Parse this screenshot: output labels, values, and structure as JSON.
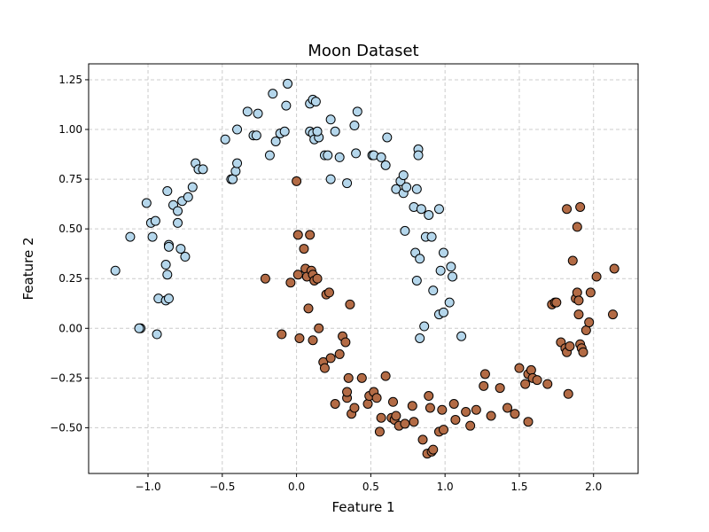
{
  "chart_data": {
    "type": "scatter",
    "title": "Moon Dataset",
    "xlabel": "Feature 1",
    "ylabel": "Feature 2",
    "xlim": [
      -1.4,
      2.3
    ],
    "ylim": [
      -0.73,
      1.33
    ],
    "x_ticks": [
      -1.0,
      -0.5,
      0.0,
      0.5,
      1.0,
      1.5,
      2.0
    ],
    "x_tick_labels": [
      "−1.0",
      "−0.5",
      "0.0",
      "0.5",
      "1.0",
      "1.5",
      "2.0"
    ],
    "y_ticks": [
      -0.5,
      -0.25,
      0.0,
      0.25,
      0.5,
      0.75,
      1.0,
      1.25
    ],
    "y_tick_labels": [
      "−0.50",
      "−0.25",
      "0.00",
      "0.25",
      "0.50",
      "0.75",
      "1.00",
      "1.25"
    ],
    "grid": true,
    "grid_style": "dashed",
    "series": [
      {
        "color": "#b4d6eb",
        "edge_color": "#000000",
        "x": [
          -1.22,
          -1.12,
          -1.05,
          -1.06,
          -1.01,
          -0.98,
          -0.95,
          -0.97,
          -0.94,
          -0.93,
          -0.88,
          -0.86,
          -0.88,
          -0.87,
          -0.86,
          -0.86,
          -0.87,
          -0.83,
          -0.8,
          -0.8,
          -0.78,
          -0.77,
          -0.73,
          -0.75,
          -0.7,
          -0.68,
          -0.66,
          -0.63,
          -0.48,
          -0.44,
          -0.43,
          -0.41,
          -0.4,
          -0.4,
          -0.33,
          -0.29,
          -0.27,
          -0.26,
          -0.18,
          -0.16,
          -0.14,
          -0.11,
          -0.08,
          -0.07,
          -0.06,
          0.09,
          0.09,
          0.11,
          0.11,
          0.12,
          0.13,
          0.15,
          0.14,
          0.19,
          0.21,
          0.23,
          0.23,
          0.26,
          0.29,
          0.34,
          0.39,
          0.4,
          0.41,
          0.51,
          0.52,
          0.57,
          0.6,
          0.61,
          0.67,
          0.7,
          0.72,
          0.72,
          0.73,
          0.74,
          0.79,
          0.8,
          0.81,
          0.82,
          0.82,
          0.83,
          0.84,
          0.87,
          0.89,
          0.91,
          0.92,
          0.96,
          0.96,
          0.97,
          0.99,
          0.99,
          1.03,
          1.04,
          1.05,
          1.11,
          0.86,
          0.81,
          0.83
        ],
        "y": [
          0.29,
          0.46,
          0.0,
          0.0,
          0.63,
          0.53,
          0.54,
          0.46,
          -0.03,
          0.15,
          0.14,
          0.15,
          0.32,
          0.27,
          0.42,
          0.41,
          0.69,
          0.62,
          0.53,
          0.59,
          0.4,
          0.64,
          0.66,
          0.36,
          0.71,
          0.83,
          0.8,
          0.8,
          0.95,
          0.75,
          0.75,
          0.79,
          0.83,
          1.0,
          1.09,
          0.97,
          0.97,
          1.08,
          0.87,
          1.18,
          0.94,
          0.98,
          0.99,
          1.12,
          1.23,
          1.13,
          0.99,
          1.15,
          0.98,
          0.95,
          1.14,
          0.96,
          0.99,
          0.87,
          0.87,
          1.05,
          0.75,
          0.99,
          0.86,
          0.73,
          1.02,
          0.88,
          1.09,
          0.87,
          0.87,
          0.86,
          0.82,
          0.96,
          0.7,
          0.74,
          0.68,
          0.77,
          0.49,
          0.71,
          0.61,
          0.38,
          0.7,
          0.9,
          0.87,
          0.35,
          0.6,
          0.46,
          0.57,
          0.46,
          0.19,
          0.6,
          0.07,
          0.29,
          0.08,
          0.38,
          0.13,
          0.31,
          0.26,
          -0.04,
          0.01,
          0.24,
          -0.05
        ]
      },
      {
        "color": "#b36b45",
        "edge_color": "#000000",
        "x": [
          -0.21,
          -0.1,
          -0.04,
          0.0,
          0.01,
          0.01,
          0.02,
          0.05,
          0.06,
          0.07,
          0.08,
          0.09,
          0.1,
          0.11,
          0.11,
          0.12,
          0.14,
          0.15,
          0.18,
          0.19,
          0.2,
          0.22,
          0.23,
          0.26,
          0.29,
          0.31,
          0.33,
          0.34,
          0.34,
          0.35,
          0.36,
          0.37,
          0.39,
          0.44,
          0.48,
          0.49,
          0.52,
          0.54,
          0.56,
          0.57,
          0.6,
          0.64,
          0.65,
          0.66,
          0.67,
          0.69,
          0.73,
          0.78,
          0.79,
          0.85,
          0.88,
          0.89,
          0.9,
          0.91,
          0.92,
          0.96,
          0.98,
          0.99,
          1.06,
          1.07,
          1.14,
          1.17,
          1.21,
          1.26,
          1.27,
          1.31,
          1.37,
          1.42,
          1.47,
          1.5,
          1.54,
          1.56,
          1.56,
          1.58,
          1.59,
          1.62,
          1.69,
          1.72,
          1.74,
          1.75,
          1.78,
          1.81,
          1.82,
          1.83,
          1.84,
          1.86,
          1.88,
          1.89,
          1.89,
          1.9,
          1.9,
          1.91,
          1.92,
          1.93,
          1.95,
          1.97,
          1.98,
          2.02,
          2.13,
          2.14,
          1.82,
          1.91
        ],
        "y": [
          0.25,
          -0.03,
          0.23,
          0.74,
          0.27,
          0.47,
          -0.05,
          0.4,
          0.3,
          0.26,
          0.1,
          0.47,
          0.29,
          0.27,
          -0.06,
          0.24,
          0.25,
          0.0,
          -0.17,
          -0.2,
          0.17,
          0.18,
          -0.15,
          -0.38,
          -0.13,
          -0.04,
          -0.07,
          -0.35,
          -0.32,
          -0.25,
          0.12,
          -0.43,
          -0.4,
          -0.25,
          -0.38,
          -0.34,
          -0.32,
          -0.35,
          -0.52,
          -0.45,
          -0.24,
          -0.45,
          -0.37,
          -0.46,
          -0.44,
          -0.49,
          -0.48,
          -0.39,
          -0.47,
          -0.56,
          -0.63,
          -0.34,
          -0.4,
          -0.62,
          -0.61,
          -0.52,
          -0.41,
          -0.51,
          -0.38,
          -0.46,
          -0.42,
          -0.49,
          -0.41,
          -0.29,
          -0.23,
          -0.44,
          -0.3,
          -0.4,
          -0.43,
          -0.2,
          -0.28,
          -0.47,
          -0.23,
          -0.21,
          -0.25,
          -0.26,
          -0.28,
          0.12,
          0.13,
          0.13,
          -0.07,
          -0.1,
          -0.12,
          -0.33,
          -0.09,
          0.34,
          0.15,
          0.51,
          0.18,
          0.14,
          0.07,
          -0.08,
          -0.1,
          -0.12,
          -0.01,
          0.03,
          0.18,
          0.26,
          0.07,
          0.3,
          0.6,
          0.61
        ]
      }
    ]
  }
}
